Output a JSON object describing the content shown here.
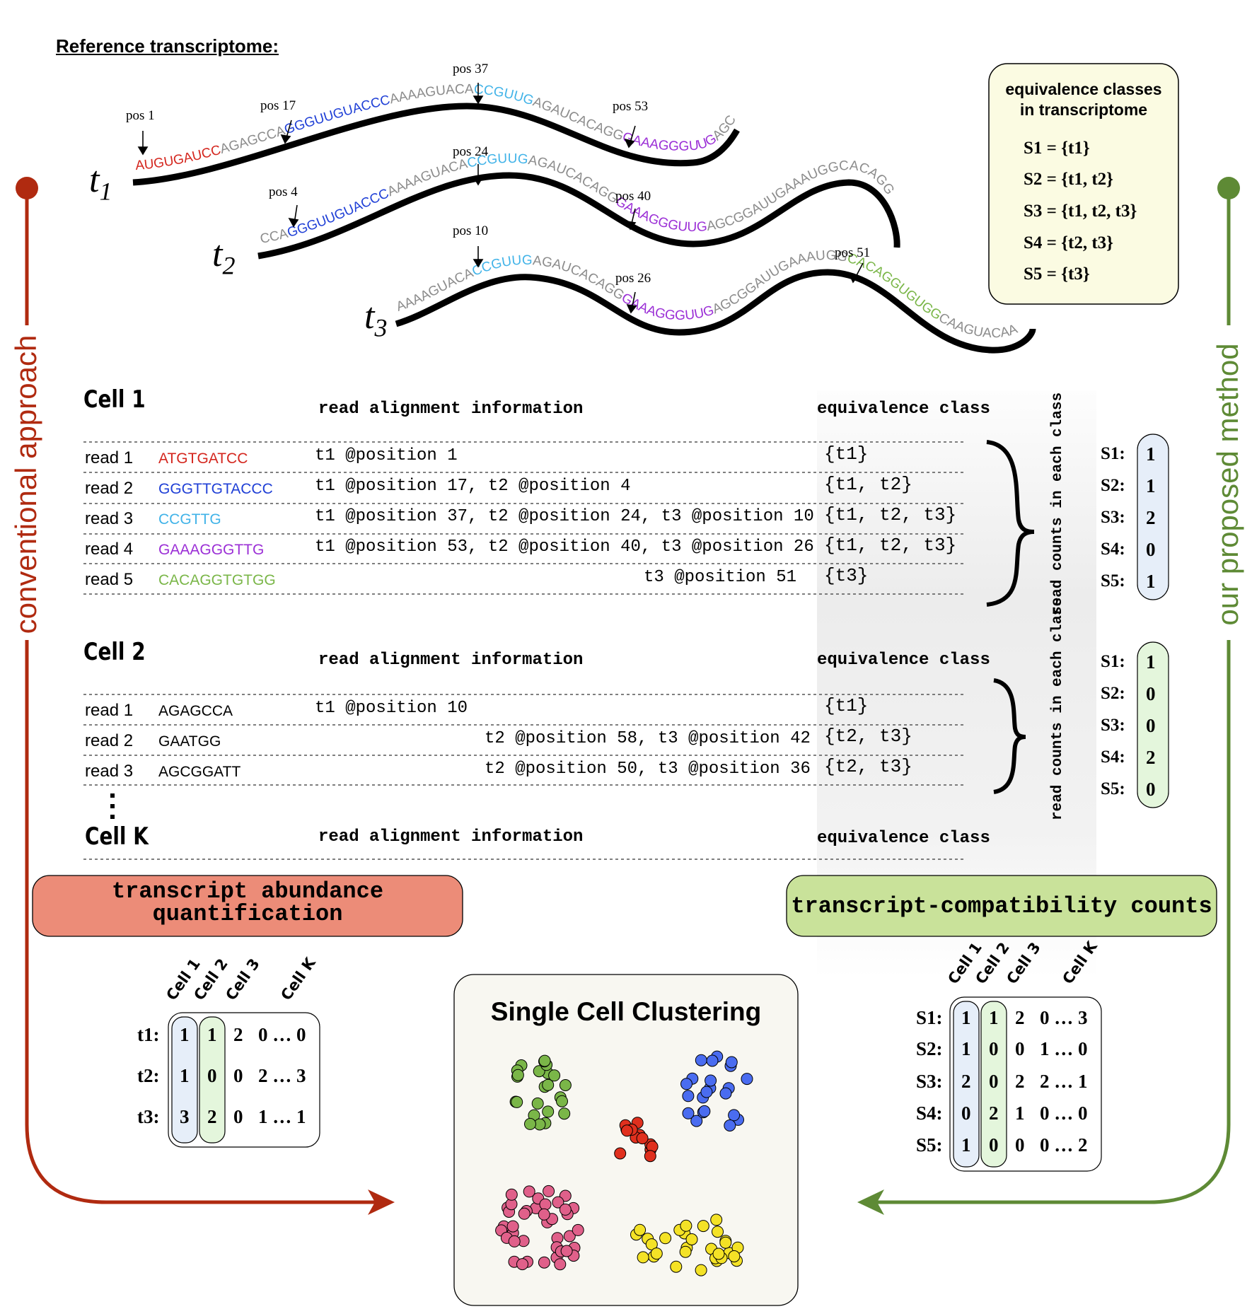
{
  "title": "Reference transcriptome:",
  "transcripts": {
    "t1": {
      "label_main": "t",
      "label_sub": "1",
      "positions": [
        "pos 1",
        "pos 17",
        "pos 37",
        "pos 53"
      ],
      "segments": [
        {
          "text": "AUGUGAUCC",
          "color": "#d4261e"
        },
        {
          "text": "AGAGCCA",
          "color": "#8c8c8c"
        },
        {
          "text": "GGGUUGUACCC",
          "color": "#1f3fd6"
        },
        {
          "text": "AAAAGUACA",
          "color": "#8c8c8c"
        },
        {
          "text": "CCGUUG",
          "color": "#41b3e8"
        },
        {
          "text": "AGAUCACAGG",
          "color": "#8c8c8c"
        },
        {
          "text": "GAAAGGGUUG",
          "color": "#9b2fd6"
        },
        {
          "text": "AGC",
          "color": "#8c8c8c"
        }
      ]
    },
    "t2": {
      "label_main": "t",
      "label_sub": "2",
      "positions": [
        "pos 4",
        "pos 24",
        "pos 40"
      ],
      "segments": [
        {
          "text": "CCA",
          "color": "#8c8c8c"
        },
        {
          "text": "GGGUUGUACCC",
          "color": "#1f3fd6"
        },
        {
          "text": "AAAAGUACA",
          "color": "#8c8c8c"
        },
        {
          "text": "CCGUUG",
          "color": "#41b3e8"
        },
        {
          "text": "AGAUCACAGG",
          "color": "#8c8c8c"
        },
        {
          "text": "GAAAGGGUUG",
          "color": "#9b2fd6"
        },
        {
          "text": "AGCGGAUUGAAAUGGCACAGG",
          "color": "#8c8c8c"
        }
      ]
    },
    "t3": {
      "label_main": "t",
      "label_sub": "3",
      "positions": [
        "pos 10",
        "pos 26",
        "pos 51"
      ],
      "segments": [
        {
          "text": "AAAAGUACA",
          "color": "#8c8c8c"
        },
        {
          "text": "CCGUUG",
          "color": "#41b3e8"
        },
        {
          "text": "AGAUCACAGG",
          "color": "#8c8c8c"
        },
        {
          "text": "GAAAGGGUUG",
          "color": "#9b2fd6"
        },
        {
          "text": "AGCGGAUUGAAAUGG",
          "color": "#8c8c8c"
        },
        {
          "text": "CACAGGUGUGG",
          "color": "#7ab648"
        },
        {
          "text": "CAAGUACAA",
          "color": "#8c8c8c"
        }
      ]
    }
  },
  "ec_box": {
    "title_line1": "equivalence classes",
    "title_line2": "in transcriptome",
    "lines": [
      "S1 = {t1}",
      "S2 = {t1, t2}",
      "S3 = {t1, t2, t3}",
      "S4 = {t2, t3}",
      "S5 = {t3}"
    ]
  },
  "side_labels": {
    "left": "conventional approach",
    "right": "our proposed method"
  },
  "cells": {
    "cell1": {
      "title": "Cell 1",
      "col_align": "read alignment information",
      "col_ec": "equivalence class",
      "reads": [
        {
          "label": "read 1",
          "seq": "ATGTGATCC",
          "seq_color": "#d4261e",
          "align": "t1 @position 1",
          "ec": "{t1}"
        },
        {
          "label": "read 2",
          "seq": "GGGTTGTACCC",
          "seq_color": "#1f3fd6",
          "align": "t1 @position 17, t2 @position 4",
          "ec": "{t1, t2}"
        },
        {
          "label": "read 3",
          "seq": "CCGTTG",
          "seq_color": "#41b3e8",
          "align": "t1 @position 37, t2 @position 24, t3 @position 10",
          "ec": "{t1, t2, t3}"
        },
        {
          "label": "read 4",
          "seq": "GAAAGGGTTG",
          "seq_color": "#9b2fd6",
          "align": "t1 @position 53, t2 @position 40, t3 @position 26",
          "ec": "{t1, t2, t3}"
        },
        {
          "label": "read 5",
          "seq": "CACAGGTGTGG",
          "seq_color": "#7ab648",
          "align": "t3 @position 51",
          "ec": "{t3}"
        }
      ],
      "count_caption": "read counts in each class",
      "counts": [
        {
          "label": "S1:",
          "value": "1"
        },
        {
          "label": "S2:",
          "value": "1"
        },
        {
          "label": "S3:",
          "value": "2"
        },
        {
          "label": "S4:",
          "value": "0"
        },
        {
          "label": "S5:",
          "value": "1"
        }
      ]
    },
    "cell2": {
      "title": "Cell 2",
      "col_align": "read alignment information",
      "col_ec": "equivalence class",
      "reads": [
        {
          "label": "read 1",
          "seq": "AGAGCCA",
          "seq_color": "#000000",
          "align": "t1 @position 10",
          "ec": "{t1}"
        },
        {
          "label": "read 2",
          "seq": "GAATGG",
          "seq_color": "#000000",
          "align": "t2 @position 58, t3 @position 42",
          "ec": "{t2, t3}"
        },
        {
          "label": "read 3",
          "seq": "AGCGGATT",
          "seq_color": "#000000",
          "align": "t2 @position 50, t3 @position 36",
          "ec": "{t2, t3}"
        }
      ],
      "count_caption": "read counts in each class",
      "counts": [
        {
          "label": "S1:",
          "value": "1"
        },
        {
          "label": "S2:",
          "value": "0"
        },
        {
          "label": "S3:",
          "value": "0"
        },
        {
          "label": "S4:",
          "value": "2"
        },
        {
          "label": "S5:",
          "value": "0"
        }
      ]
    },
    "cellK": {
      "title": "Cell K",
      "col_align": "read alignment information",
      "col_ec": "equivalence class"
    }
  },
  "method_boxes": {
    "left_line1": "transcript abundance",
    "left_line2": "quantification",
    "right": "transcript-compatibility counts",
    "left_color": "#ec8c78",
    "right_color": "#c9e29a"
  },
  "left_matrix": {
    "col_labels": [
      "Cell 1",
      "Cell 2",
      "Cell 3",
      "Cell K"
    ],
    "row_labels": [
      "t1:",
      "t2:",
      "t3:"
    ],
    "rows": [
      [
        "1",
        "1",
        "2",
        "0 … 0"
      ],
      [
        "1",
        "0",
        "0",
        "2 … 3"
      ],
      [
        "3",
        "2",
        "0",
        "1 … 1"
      ]
    ]
  },
  "right_matrix": {
    "col_labels": [
      "Cell 1",
      "Cell 2",
      "Cell 3",
      "Cell K"
    ],
    "row_labels": [
      "S1:",
      "S2:",
      "S3:",
      "S4:",
      "S5:"
    ],
    "rows": [
      [
        "1",
        "1",
        "2",
        "0 … 3"
      ],
      [
        "1",
        "0",
        "0",
        "1 … 0"
      ],
      [
        "2",
        "0",
        "2",
        "2 … 1"
      ],
      [
        "0",
        "2",
        "1",
        "0 … 0"
      ],
      [
        "1",
        "0",
        "0",
        "0 … 2"
      ]
    ]
  },
  "clustering": {
    "title": "Single Cell Clustering",
    "colors": {
      "green": "#7ab648",
      "blue": "#4a6cf0",
      "red": "#e0301e",
      "pink": "#e0608a",
      "yellow": "#f4e226"
    }
  },
  "colors": {
    "conventional": "#b02a10",
    "proposed": "#5e8a35",
    "highlight_blue": "#e6eef9",
    "highlight_green": "#e4f6dc",
    "ec_box_bg": "#fbfbe2"
  }
}
